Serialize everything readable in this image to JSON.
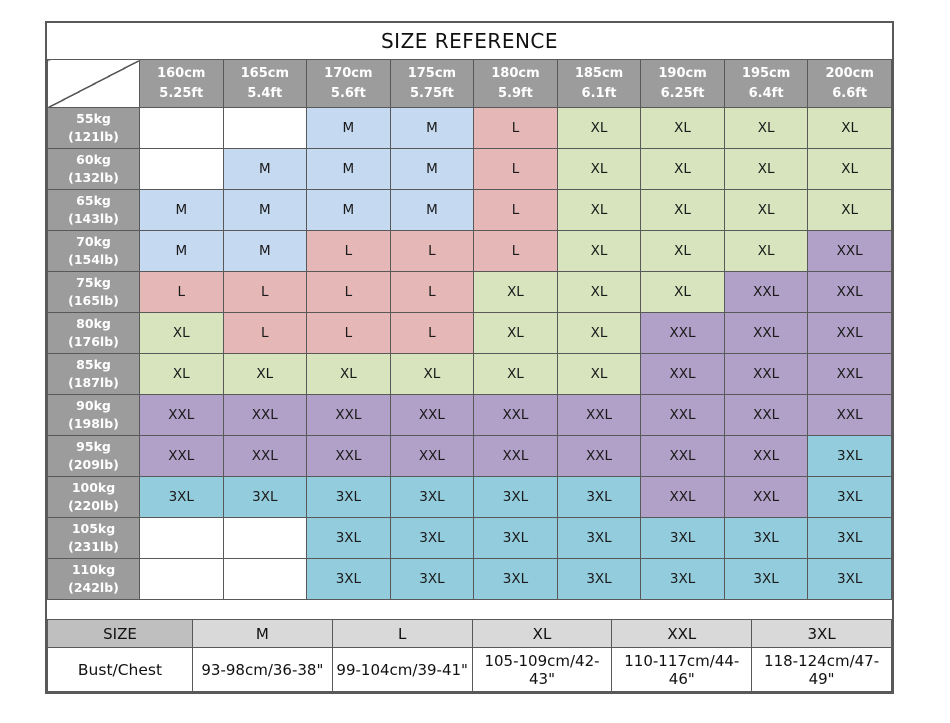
{
  "title": "SIZE REFERENCE",
  "colors": {
    "border": "#595959",
    "header_bg": "#9c9c9c",
    "header_text": "#ffffff",
    "size_corner_bg": "#bfbfbf",
    "bust_header_bg": "#d9d9d9",
    "sizes": {
      "M": "#c5d9f1",
      "L": "#e5b8b7",
      "XL": "#d7e4bd",
      "XXL": "#b1a0c7",
      "3XL": "#93cddd"
    }
  },
  "chart_data": {
    "type": "table",
    "title": "SIZE REFERENCE",
    "height_columns": [
      {
        "cm": "160cm",
        "ft": "5.25ft"
      },
      {
        "cm": "165cm",
        "ft": "5.4ft"
      },
      {
        "cm": "170cm",
        "ft": "5.6ft"
      },
      {
        "cm": "175cm",
        "ft": "5.75ft"
      },
      {
        "cm": "180cm",
        "ft": "5.9ft"
      },
      {
        "cm": "185cm",
        "ft": "6.1ft"
      },
      {
        "cm": "190cm",
        "ft": "6.25ft"
      },
      {
        "cm": "195cm",
        "ft": "6.4ft"
      },
      {
        "cm": "200cm",
        "ft": "6.6ft"
      }
    ],
    "weight_rows": [
      {
        "kg": "55kg",
        "lb": "(121lb)",
        "sizes": [
          "",
          "",
          "M",
          "M",
          "L",
          "XL",
          "XL",
          "XL",
          "XL"
        ]
      },
      {
        "kg": "60kg",
        "lb": "(132lb)",
        "sizes": [
          "",
          "M",
          "M",
          "M",
          "L",
          "XL",
          "XL",
          "XL",
          "XL"
        ]
      },
      {
        "kg": "65kg",
        "lb": "(143lb)",
        "sizes": [
          "M",
          "M",
          "M",
          "M",
          "L",
          "XL",
          "XL",
          "XL",
          "XL"
        ]
      },
      {
        "kg": "70kg",
        "lb": "(154lb)",
        "sizes": [
          "M",
          "M",
          "L",
          "L",
          "L",
          "XL",
          "XL",
          "XL",
          "XXL"
        ]
      },
      {
        "kg": "75kg",
        "lb": "(165lb)",
        "sizes": [
          "L",
          "L",
          "L",
          "L",
          "XL",
          "XL",
          "XL",
          "XXL",
          "XXL"
        ]
      },
      {
        "kg": "80kg",
        "lb": "(176lb)",
        "sizes": [
          "XL",
          "L",
          "L",
          "L",
          "XL",
          "XL",
          "XXL",
          "XXL",
          "XXL"
        ]
      },
      {
        "kg": "85kg",
        "lb": "(187lb)",
        "sizes": [
          "XL",
          "XL",
          "XL",
          "XL",
          "XL",
          "XL",
          "XXL",
          "XXL",
          "XXL"
        ]
      },
      {
        "kg": "90kg",
        "lb": "(198lb)",
        "sizes": [
          "XXL",
          "XXL",
          "XXL",
          "XXL",
          "XXL",
          "XXL",
          "XXL",
          "XXL",
          "XXL"
        ]
      },
      {
        "kg": "95kg",
        "lb": "(209lb)",
        "sizes": [
          "XXL",
          "XXL",
          "XXL",
          "XXL",
          "XXL",
          "XXL",
          "XXL",
          "XXL",
          "3XL"
        ]
      },
      {
        "kg": "100kg",
        "lb": "(220lb)",
        "sizes": [
          "3XL",
          "3XL",
          "3XL",
          "3XL",
          "3XL",
          "3XL",
          "XXL",
          "XXL",
          "3XL"
        ]
      },
      {
        "kg": "105kg",
        "lb": "(231lb)",
        "sizes": [
          "",
          "",
          "3XL",
          "3XL",
          "3XL",
          "3XL",
          "3XL",
          "3XL",
          "3XL"
        ]
      },
      {
        "kg": "110kg",
        "lb": "(242lb)",
        "sizes": [
          "",
          "",
          "3XL",
          "3XL",
          "3XL",
          "3XL",
          "3XL",
          "3XL",
          "3XL"
        ]
      }
    ],
    "bust_chest": {
      "corner_label": "SIZE",
      "row_label": "Bust/Chest",
      "size_headers": [
        "M",
        "L",
        "XL",
        "XXL",
        "3XL"
      ],
      "values": [
        "93-98cm/36-38\"",
        "99-104cm/39-41\"",
        "105-109cm/42-43\"",
        "110-117cm/44-46\"",
        "118-124cm/47-49\""
      ]
    }
  }
}
